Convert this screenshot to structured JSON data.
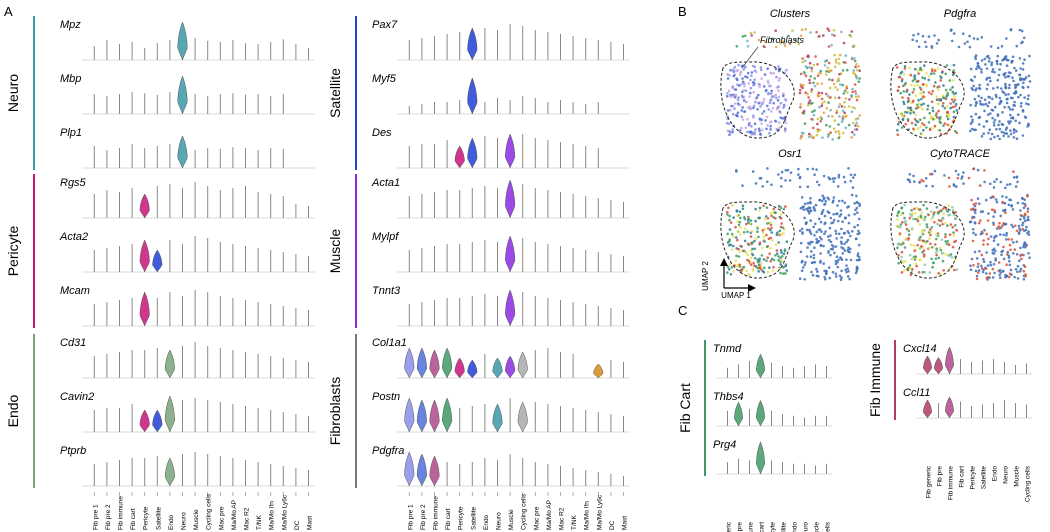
{
  "figure": {
    "panel_a": "A",
    "panel_b": "B",
    "panel_c": "C"
  },
  "chart_data": [
    {
      "type": "violin",
      "panel": "A",
      "categories": [
        "Fib pre 1",
        "Fib pre 2",
        "Fib immune",
        "Fib cart",
        "Pericyte",
        "Satellite",
        "Endo",
        "Neuro",
        "Muscle",
        "Cycling cells",
        "Mac pre",
        "Ma/Mo AP",
        "Mac R2",
        "T/NK",
        "Ma/Mo Ifn",
        "Ma/Mo Ly6c",
        "DC",
        "Mast"
      ],
      "groups": [
        {
          "name": "Neuro",
          "color": "#3a9aa8",
          "genes": [
            {
              "gene": "Mpz",
              "heights": [
                0.35,
                0.5,
                0.4,
                0.45,
                0.3,
                0.42,
                0.5,
                0.0,
                0.55,
                0.48,
                0.45,
                0.5,
                0.42,
                0.4,
                0.45,
                0.52,
                0.4,
                0.3
              ],
              "violin": {
                "Neuro": 0.95
              }
            },
            {
              "gene": "Mbp",
              "heights": [
                0.5,
                0.45,
                0.5,
                0.55,
                0.52,
                0.48,
                0.55,
                0.0,
                0.5,
                0.45,
                0.5,
                0.52,
                0.48,
                0.5,
                0.45,
                0.5,
                0.0,
                0.0
              ],
              "violin": {
                "Neuro": 0.95
              }
            },
            {
              "gene": "Plp1",
              "heights": [
                0.55,
                0.45,
                0.5,
                0.6,
                0.5,
                0.55,
                0.6,
                0.0,
                0.45,
                0.5,
                0.48,
                0.52,
                0.5,
                0.45,
                0.5,
                0.48,
                0.0,
                0.0
              ],
              "violin": {
                "Neuro": 0.8
              }
            }
          ]
        },
        {
          "name": "Pericyte",
          "color": "#c8137a",
          "genes": [
            {
              "gene": "Rgs5",
              "heights": [
                0.6,
                0.7,
                0.65,
                0.75,
                0.0,
                0.8,
                0.85,
                0.75,
                0.9,
                0.8,
                0.7,
                0.75,
                0.8,
                0.65,
                0.6,
                0.55,
                0.35,
                0.3
              ],
              "violin": {
                "Pericyte": 0.6
              }
            },
            {
              "gene": "Acta2",
              "heights": [
                0.55,
                0.6,
                0.65,
                0.7,
                0.0,
                0.0,
                0.8,
                0.7,
                0.9,
                0.85,
                0.75,
                0.7,
                0.65,
                0.6,
                0.55,
                0.5,
                0.45,
                0.4
              ],
              "violin": {
                "Pericyte": 0.8,
                "Satellite": 0.55
              }
            },
            {
              "gene": "Mcam",
              "heights": [
                0.55,
                0.6,
                0.65,
                0.7,
                0.0,
                0.7,
                0.85,
                0.75,
                0.9,
                0.85,
                0.75,
                0.7,
                0.65,
                0.6,
                0.55,
                0.5,
                0.45,
                0.4
              ],
              "violin": {
                "Pericyte": 0.85
              }
            }
          ]
        },
        {
          "name": "Endo",
          "color": "#7aa37a",
          "genes": [
            {
              "gene": "Cd31",
              "heights": [
                0.55,
                0.6,
                0.65,
                0.7,
                0.7,
                0.75,
                0.0,
                0.8,
                0.9,
                0.8,
                0.75,
                0.7,
                0.65,
                0.6,
                0.55,
                0.5,
                0.45,
                0.4
              ],
              "violin": {
                "Endo": 0.7
              }
            },
            {
              "gene": "Cavin2",
              "heights": [
                0.55,
                0.6,
                0.6,
                0.7,
                0.0,
                0.0,
                0.0,
                0.8,
                0.85,
                0.8,
                0.75,
                0.7,
                0.65,
                0.6,
                0.55,
                0.5,
                0.45,
                0.4
              ],
              "violin": {
                "Pericyte": 0.55,
                "Satellite": 0.55,
                "Endo": 0.9
              }
            },
            {
              "gene": "Ptprb",
              "heights": [
                0.55,
                0.6,
                0.65,
                0.7,
                0.7,
                0.75,
                0.0,
                0.8,
                0.85,
                0.8,
                0.75,
                0.7,
                0.65,
                0.6,
                0.55,
                0.5,
                0.45,
                0.4
              ],
              "violin": {
                "Endo": 0.7
              }
            }
          ]
        },
        {
          "name": "Satellite",
          "color": "#1f3fd6",
          "genes": [
            {
              "gene": "Pax7",
              "heights": [
                0.5,
                0.55,
                0.6,
                0.65,
                0.7,
                0.0,
                0.8,
                0.75,
                0.9,
                0.85,
                0.75,
                0.7,
                0.65,
                0.6,
                0.55,
                0.5,
                0.45,
                0.4
              ],
              "violin": {
                "Satellite": 0.8
              }
            },
            {
              "gene": "Myf5",
              "heights": [
                0.2,
                0.25,
                0.3,
                0.3,
                0.35,
                0.0,
                0.3,
                0.4,
                0.35,
                0.45,
                0.4,
                0.3,
                0.35,
                0.3,
                0.25,
                0.3,
                0.0,
                0.0
              ],
              "violin": {
                "Satellite": 0.9
              }
            },
            {
              "gene": "Des",
              "heights": [
                0.55,
                0.6,
                0.6,
                0.7,
                0.0,
                0.0,
                0.8,
                0.75,
                0.0,
                0.85,
                0.75,
                0.7,
                0.65,
                0.6,
                0.55,
                0.5,
                0.0,
                0.0
              ],
              "violin": {
                "Pericyte": 0.55,
                "Satellite": 0.75,
                "Muscle": 0.85
              }
            }
          ]
        },
        {
          "name": "Muscle",
          "color": "#8a2be2",
          "genes": [
            {
              "gene": "Acta1",
              "heights": [
                0.55,
                0.6,
                0.65,
                0.7,
                0.7,
                0.75,
                0.8,
                0.75,
                0.0,
                0.85,
                0.75,
                0.7,
                0.65,
                0.6,
                0.55,
                0.5,
                0.45,
                0.4
              ],
              "violin": {
                "Muscle": 0.95
              }
            },
            {
              "gene": "Mylpf",
              "heights": [
                0.55,
                0.6,
                0.65,
                0.7,
                0.7,
                0.75,
                0.8,
                0.75,
                0.0,
                0.85,
                0.75,
                0.7,
                0.65,
                0.6,
                0.55,
                0.5,
                0.45,
                0.4
              ],
              "violin": {
                "Muscle": 0.9
              }
            },
            {
              "gene": "Tnnt3",
              "heights": [
                0.55,
                0.6,
                0.65,
                0.7,
                0.7,
                0.75,
                0.8,
                0.75,
                0.0,
                0.85,
                0.75,
                0.7,
                0.65,
                0.6,
                0.55,
                0.5,
                0.45,
                0.4
              ],
              "violin": {
                "Muscle": 0.9
              }
            }
          ]
        },
        {
          "name": "Fibroblasts",
          "color": "#777777",
          "genes": [
            {
              "gene": "Col1a1",
              "heights": [
                0,
                0,
                0,
                0,
                0,
                0,
                0.6,
                0,
                0,
                0,
                0.7,
                0.75,
                0.65,
                0.6,
                0.0,
                0.5,
                0.45,
                0.4
              ],
              "violin": {
                "Fib pre 1": 0.75,
                "Fib pre 2": 0.75,
                "Fib immune": 0.7,
                "Fib cart": 0.75,
                "Pericyte": 0.5,
                "Satellite": 0.45,
                "Neuro": 0.5,
                "Muscle": 0.55,
                "Cycling cells": 0.65,
                "Ma/Mo Ly6c": 0.35
              }
            },
            {
              "gene": "Postn",
              "heights": [
                0,
                0,
                0,
                0,
                0.6,
                0.65,
                0.7,
                0,
                0.85,
                0,
                0.75,
                0.7,
                0.65,
                0.6,
                0.55,
                0.5,
                0.45,
                0.4
              ],
              "violin": {
                "Fib pre 1": 0.85,
                "Fib pre 2": 0.8,
                "Fib immune": 0.8,
                "Fib cart": 0.85,
                "Neuro": 0.7,
                "Cycling cells": 0.75
              }
            },
            {
              "gene": "Pdgfra",
              "heights": [
                0,
                0,
                0,
                0.6,
                0.55,
                0.6,
                0.7,
                0.65,
                0.8,
                0.7,
                0.6,
                0.55,
                0.5,
                0.45,
                0.4,
                0.35,
                0.3,
                0.25
              ],
              "violin": {
                "Fib pre 1": 0.85,
                "Fib pre 2": 0.8,
                "Fib immune": 0.75
              }
            }
          ]
        }
      ]
    },
    {
      "type": "scatter",
      "panel": "B",
      "subplots": [
        "Clusters",
        "Pdgfra",
        "Osr1",
        "CytoTRACE"
      ],
      "annotation": "Fibroblasts",
      "xlabel": "UMAP 1",
      "ylabel": "UMAP 2"
    },
    {
      "type": "violin",
      "panel": "C",
      "groups": [
        {
          "name": "Fib Cart",
          "color": "#3f9a63",
          "categories": [
            "Fib generic",
            "Fib pre",
            "Fib immune",
            "Fib cart",
            "Pericyte",
            "Satellite",
            "Endo",
            "Neuro",
            "Muscle",
            "Cycling cells"
          ],
          "genes": [
            {
              "gene": "Tnmd",
              "heights": [
                0.3,
                0.4,
                0.5,
                0.0,
                0.45,
                0.35,
                0.3,
                0.35,
                0.4,
                0.35
              ],
              "violin": {
                "Fib cart": 0.7
              }
            },
            {
              "gene": "Thbs4",
              "heights": [
                0.45,
                0.0,
                0.5,
                0.0,
                0.45,
                0.35,
                0.3,
                0.25,
                0.3,
                0.3
              ],
              "violin": {
                "Fib pre": 0.7,
                "Fib cart": 0.75
              }
            },
            {
              "gene": "Prg4",
              "heights": [
                0.35,
                0.45,
                0.4,
                0.0,
                0.4,
                0.35,
                0.3,
                0.3,
                0.25,
                0.3
              ],
              "violin": {
                "Fib cart": 0.95
              }
            }
          ]
        },
        {
          "name": "Fib Immune",
          "color": "#b23a68",
          "categories": [
            "Fib generic",
            "Fib pre",
            "Fib immune",
            "Fib cart",
            "Pericyte",
            "Satellite",
            "Endo",
            "Neuro",
            "Muscle",
            "Cycling cells"
          ],
          "genes": [
            {
              "gene": "Cxcl14",
              "heights": [
                0.0,
                0.0,
                0.0,
                0.5,
                0.4,
                0.45,
                0.5,
                0.4,
                0.3,
                0.35
              ],
              "violin": {
                "Fib generic": 0.6,
                "Fib pre": 0.55,
                "Fib immune": 0.9
              }
            },
            {
              "gene": "Ccl11",
              "heights": [
                0.0,
                0.5,
                0.0,
                0.55,
                0.4,
                0.45,
                0.5,
                0.6,
                0.5,
                0.45
              ],
              "violin": {
                "Fib generic": 0.6,
                "Fib immune": 0.7
              }
            }
          ]
        }
      ]
    }
  ]
}
